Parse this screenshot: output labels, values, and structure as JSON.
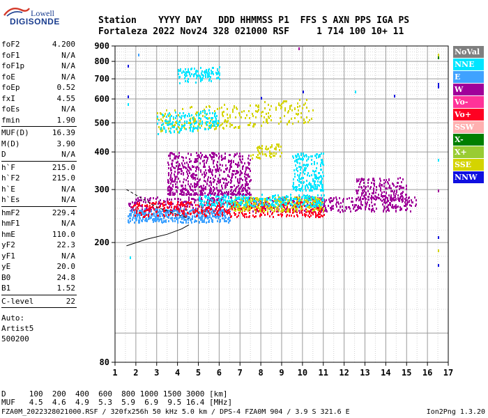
{
  "logo": {
    "top": "Lowell",
    "bottom": "DIGISONDE"
  },
  "header": {
    "row1": "Station    YYYY DAY   DDD HHMMSS P1  FFS S AXN PPS IGA PS",
    "row2": "Fortaleza 2022 Nov24 328 021000 RSF     1 714 100 10+ 11"
  },
  "param_groups": [
    [
      {
        "k": "foF2",
        "v": "4.200"
      },
      {
        "k": "foF1",
        "v": "N/A"
      },
      {
        "k": "foF1p",
        "v": "N/A"
      },
      {
        "k": "foE",
        "v": "N/A"
      },
      {
        "k": "foEp",
        "v": "0.52"
      },
      {
        "k": "fxI",
        "v": "4.55"
      },
      {
        "k": "foEs",
        "v": "N/A"
      },
      {
        "k": "fmin",
        "v": "1.90"
      }
    ],
    [
      {
        "k": "MUF(D)",
        "v": "16.39"
      },
      {
        "k": "M(D)",
        "v": "3.90"
      },
      {
        "k": "D",
        "v": "N/A"
      }
    ],
    [
      {
        "k": "h`F",
        "v": "215.0"
      },
      {
        "k": "h`F2",
        "v": "215.0"
      },
      {
        "k": "h`E",
        "v": "N/A"
      },
      {
        "k": "h`Es",
        "v": "N/A"
      }
    ],
    [
      {
        "k": "hmF2",
        "v": "229.4"
      },
      {
        "k": "hmF1",
        "v": "N/A"
      },
      {
        "k": "hmE",
        "v": "110.0"
      },
      {
        "k": "yF2",
        "v": "22.3"
      },
      {
        "k": "yF1",
        "v": "N/A"
      },
      {
        "k": "yE",
        "v": "20.0"
      },
      {
        "k": "B0",
        "v": "24.8"
      },
      {
        "k": "B1",
        "v": "1.52"
      }
    ],
    [
      {
        "k": "C-level",
        "v": "22"
      }
    ]
  ],
  "auto": {
    "line1": "Auto:",
    "line2": "Artist5",
    "line3": "500200"
  },
  "legend": [
    {
      "label": "NoVal",
      "color": "#7f7f7f"
    },
    {
      "label": "NNE",
      "color": "#00e5ff"
    },
    {
      "label": "E",
      "color": "#3fa2ff"
    },
    {
      "label": "W",
      "color": "#a0009a"
    },
    {
      "label": "Vo-",
      "color": "#ff3399"
    },
    {
      "label": "Vo+",
      "color": "#ff0022"
    },
    {
      "label": "SSW",
      "color": "#ffb0b0"
    },
    {
      "label": "X-",
      "color": "#007f00"
    },
    {
      "label": "X+",
      "color": "#99cc33"
    },
    {
      "label": "SSE",
      "color": "#d4d400"
    },
    {
      "label": "NNW",
      "color": "#1010e0"
    }
  ],
  "muf_table": {
    "row1": "D     100  200  400  600  800 1000 1500 3000 [km]",
    "row2": "MUF   4.5  4.6  4.9  5.3  5.9  6.9  9.5 16.4 [MHz]"
  },
  "footer": {
    "left": "FZA0M_2022328021000.RSF / 320fx256h 50 kHz 5.0 km / DPS-4 FZA0M 904 / 3.9 S 321.6 E",
    "right": "Ion2Png 1.3.20"
  },
  "chart_data": {
    "type": "scatter",
    "title": "",
    "xlabel": "",
    "ylabel": "",
    "xlim": [
      1,
      17
    ],
    "ylim": [
      80,
      900
    ],
    "y_scale": "log",
    "xticks": [
      "1",
      "2",
      "3",
      "4",
      "5",
      "6",
      "7",
      "8",
      "9",
      "10",
      "11",
      "12",
      "13",
      "14",
      "15",
      "16",
      "17"
    ],
    "yticks": [
      80,
      200,
      300,
      400,
      500,
      600,
      700,
      800,
      900
    ],
    "grid": true,
    "legend_position": "right",
    "profile_curve": [
      [
        1.55,
        195
      ],
      [
        2.5,
        205
      ],
      [
        3.5,
        213
      ],
      [
        4.2,
        222
      ],
      [
        4.55,
        229
      ]
    ],
    "scaled_trace": [
      [
        1.55,
        300
      ],
      [
        2.3,
        280
      ],
      [
        3,
        262
      ],
      [
        4,
        248
      ],
      [
        4.55,
        240
      ]
    ],
    "regions": [
      {
        "name": "F-trace-W",
        "color": "#a0009a",
        "x": [
          1.6,
          15.5
        ],
        "y": [
          255,
          285
        ]
      },
      {
        "name": "F-trace-E",
        "color": "#3fa2ff",
        "x": [
          1.6,
          6.5
        ],
        "y": [
          235,
          260
        ]
      },
      {
        "name": "F-trace-Vo",
        "color": "#ff0022",
        "x": [
          1.8,
          11
        ],
        "y": [
          245,
          275
        ]
      },
      {
        "name": "F-trace-SSE",
        "color": "#d4d400",
        "x": [
          6.5,
          11
        ],
        "y": [
          255,
          285
        ]
      },
      {
        "name": "F-trace-NNE",
        "color": "#00e5ff",
        "x": [
          5,
          11
        ],
        "y": [
          265,
          290
        ]
      },
      {
        "name": "spread-W",
        "color": "#a0009a",
        "x": [
          3.5,
          7.5
        ],
        "y": [
          290,
          400
        ]
      },
      {
        "name": "spread-NNE-10",
        "color": "#00e5ff",
        "x": [
          9.5,
          11
        ],
        "y": [
          300,
          400
        ]
      },
      {
        "name": "spread-W-13",
        "color": "#a0009a",
        "x": [
          12.5,
          15
        ],
        "y": [
          280,
          330
        ]
      },
      {
        "name": "2F-SSE",
        "color": "#d4d400",
        "x": [
          3,
          10.5
        ],
        "y": [
          460,
          560
        ]
      },
      {
        "name": "2F-NNE",
        "color": "#00e5ff",
        "x": [
          3,
          6
        ],
        "y": [
          460,
          540
        ]
      },
      {
        "name": "3F-NNE",
        "color": "#00e5ff",
        "x": [
          4,
          6
        ],
        "y": [
          680,
          760
        ]
      },
      {
        "name": "2F-SSE-8",
        "color": "#d4d400",
        "x": [
          7.5,
          9
        ],
        "y": [
          380,
          420
        ]
      }
    ]
  }
}
